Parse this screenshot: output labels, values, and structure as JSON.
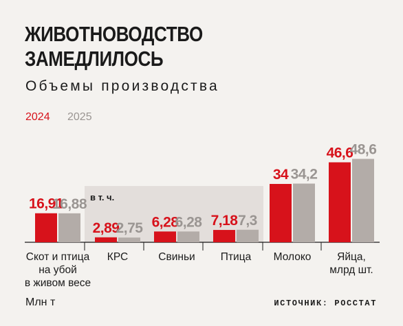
{
  "title_line1": "ЖИВОТНОВОДСТВО",
  "title_line2": "ЗАМЕДЛИЛОСЬ",
  "subtitle": "Объемы производства",
  "legend": [
    {
      "label": "2024",
      "color": "#d7121b"
    },
    {
      "label": "2025",
      "color": "#b3aca8"
    }
  ],
  "units": "Млн т",
  "source": "ИСТОЧНИК: РОССТАТ",
  "inclusion_label": "в т. ч.",
  "chart_data": {
    "type": "bar",
    "title": "ЖИВОТНОВОДСТВО ЗАМЕДЛИЛОСЬ",
    "subtitle": "Объемы производства",
    "ylabel": "Млн т",
    "categories": [
      [
        "Скот и птица",
        "на убой",
        "в живом весе"
      ],
      [
        "КРС"
      ],
      [
        "Свиньи"
      ],
      [
        "Птица"
      ],
      [
        "Молоко"
      ],
      [
        "Яйца,",
        "млрд шт."
      ]
    ],
    "series": [
      {
        "name": "2024",
        "values": [
          16.91,
          2.89,
          6.28,
          7.18,
          34,
          46.6
        ],
        "labels": [
          "16,91",
          "2,89",
          "6,28",
          "7,18",
          "34",
          "46,6"
        ]
      },
      {
        "name": "2025",
        "values": [
          16.88,
          2.75,
          6.28,
          7.3,
          34.2,
          48.6
        ],
        "labels": [
          "16,88",
          "2,75",
          "6,28",
          "7,3",
          "34,2",
          "48,6"
        ]
      }
    ],
    "grid": false,
    "legend_position": "top-left"
  }
}
